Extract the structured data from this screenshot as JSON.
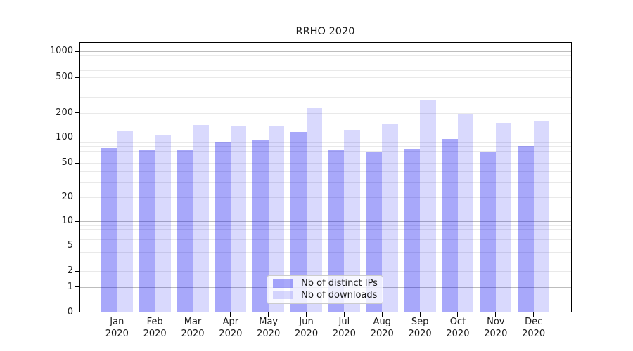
{
  "title": "RRHO 2020",
  "chart_data": {
    "type": "bar",
    "title": "RRHO 2020",
    "categories": [
      "Jan",
      "Feb",
      "Mar",
      "Apr",
      "May",
      "Jun",
      "Jul",
      "Aug",
      "Sep",
      "Oct",
      "Nov",
      "Dec"
    ],
    "category_year_line": "2020",
    "series": [
      {
        "name": "Nb of distinct IPs",
        "color": "rgba(0,0,240,0.34)",
        "values": [
          75,
          71,
          71,
          90,
          92,
          117,
          72,
          68,
          74,
          97,
          67,
          80
        ]
      },
      {
        "name": "Nb of downloads",
        "color": "rgba(0,0,240,0.15)",
        "values": [
          121,
          107,
          143,
          141,
          140,
          225,
          124,
          148,
          275,
          190,
          152,
          156
        ]
      }
    ],
    "xlabel": "",
    "ylabel": "",
    "y_axis": {
      "scale": "symlog",
      "tick_values": [
        0,
        1,
        2,
        5,
        10,
        20,
        50,
        100,
        200,
        500,
        1000
      ],
      "major_grid_values": [
        1,
        10,
        100,
        1000
      ],
      "minor_grid_values": [
        2,
        3,
        4,
        5,
        6,
        7,
        8,
        9,
        20,
        30,
        40,
        50,
        60,
        70,
        80,
        90,
        200,
        300,
        400,
        500,
        600,
        700,
        800,
        900
      ],
      "range": [
        0,
        1300
      ]
    },
    "legend": {
      "position": "lower center",
      "entries": [
        "Nb of distinct IPs",
        "Nb of downloads"
      ]
    },
    "grid": true,
    "colors": {
      "major_grid": "#bdbdbd",
      "minor_grid": "#e9e9e9",
      "spine": "#000000",
      "text": "#1a1a1a",
      "background": "#ffffff"
    }
  }
}
